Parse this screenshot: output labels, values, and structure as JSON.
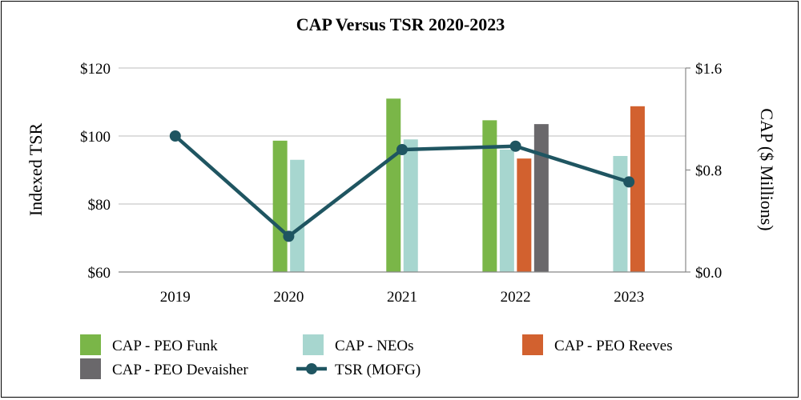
{
  "chart_data": {
    "type": "bar+line",
    "title": "CAP Versus TSR 2020-2023",
    "categories": [
      "2019",
      "2020",
      "2021",
      "2022",
      "2023"
    ],
    "y_left": {
      "label": "Indexed TSR",
      "range": [
        60,
        120
      ],
      "ticks": [
        60,
        80,
        100,
        120
      ],
      "tick_labels": [
        "$60",
        "$80",
        "$100",
        "$120"
      ]
    },
    "y_right": {
      "label": "CAP ($ Millions)",
      "range": [
        0,
        1.6
      ],
      "ticks": [
        0,
        0.8,
        1.6
      ],
      "tick_labels": [
        "$0.0",
        "$0.8",
        "$1.6"
      ]
    },
    "bar_series": [
      {
        "name": "CAP - PEO Funk",
        "color": "#7ab648",
        "values": [
          null,
          1.03,
          1.36,
          1.19,
          null
        ]
      },
      {
        "name": "CAP - NEOs",
        "color": "#a7d6cf",
        "values": [
          null,
          0.88,
          1.04,
          0.96,
          0.91
        ]
      },
      {
        "name": "CAP - PEO Reeves",
        "color": "#d2612f",
        "values": [
          null,
          null,
          null,
          0.89,
          1.3
        ]
      },
      {
        "name": "CAP - PEO Devaisher",
        "color": "#6a686b",
        "values": [
          null,
          null,
          null,
          1.16,
          null
        ]
      }
    ],
    "line_series": {
      "name": "TSR (MOFG)",
      "color": "#1f5561",
      "axis": "left",
      "values": [
        100,
        70.5,
        96,
        97,
        86.5
      ]
    },
    "legend": {
      "placement": "bottom",
      "items": [
        "CAP - PEO Funk",
        "CAP - NEOs",
        "CAP - PEO Reeves",
        "CAP - PEO Devaisher",
        "TSR (MOFG)"
      ]
    }
  }
}
